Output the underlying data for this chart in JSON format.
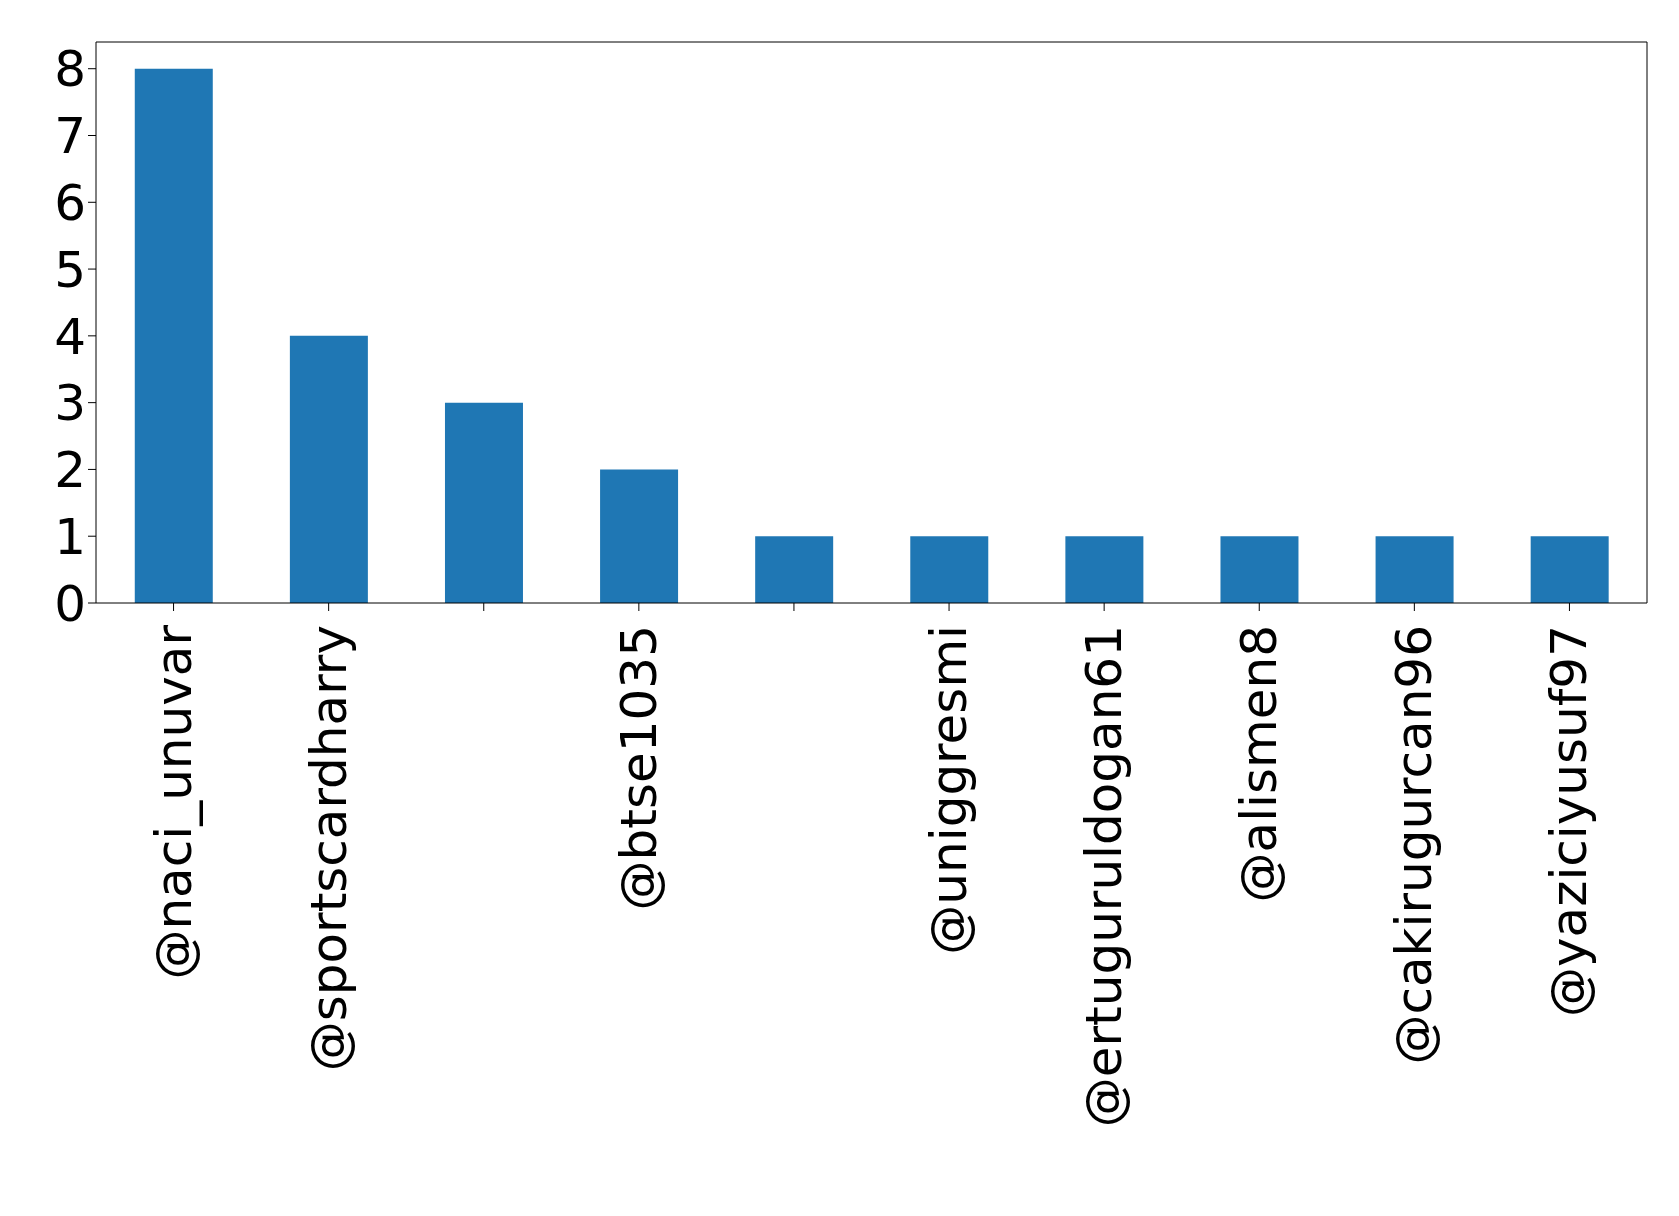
{
  "chart_data": {
    "type": "bar",
    "categories": [
      "@naci_unuvar",
      "@sportscardharry",
      null,
      "@btse1035",
      null,
      "@uniggresmi",
      "@ertuguruldogan61",
      "@alismen8",
      "@cakirugurcan96",
      "@yaziciyusuf97"
    ],
    "values": [
      8,
      4,
      3,
      2,
      1,
      1,
      1,
      1,
      1,
      1
    ],
    "color": "#1f77b4",
    "ylim": [
      0,
      8.4
    ],
    "yticks": [
      0,
      1,
      2,
      3,
      4,
      5,
      6,
      7,
      8
    ],
    "grid": false,
    "legend": false
  }
}
